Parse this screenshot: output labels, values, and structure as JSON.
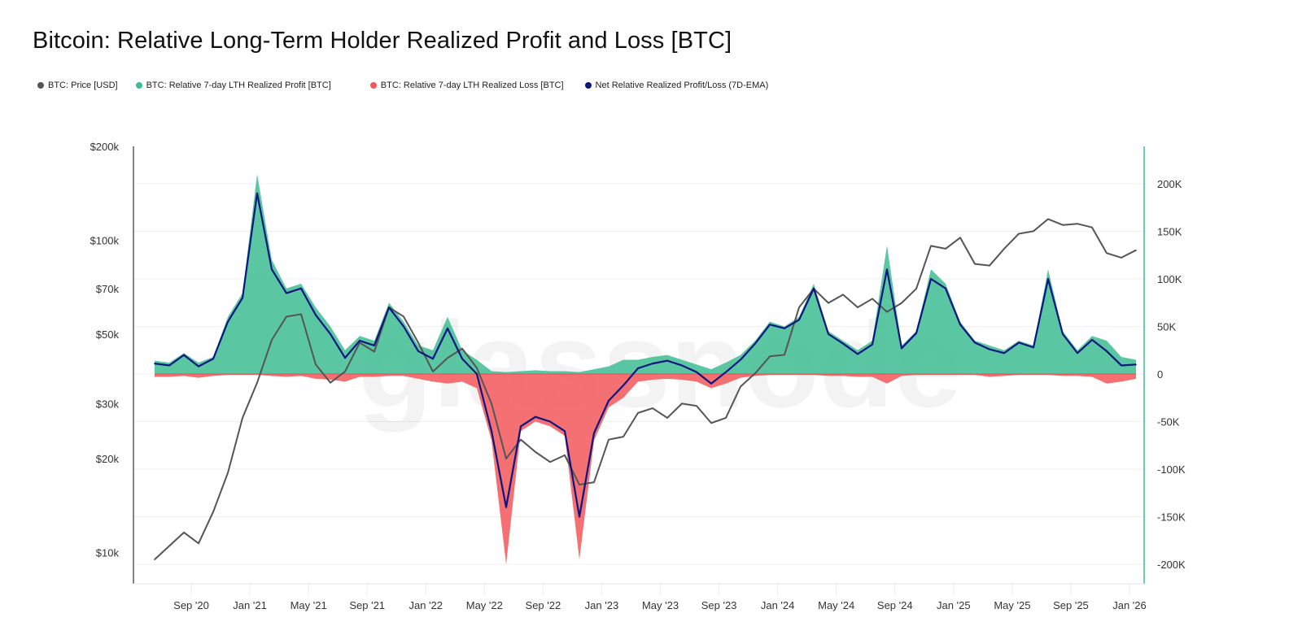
{
  "title": "Bitcoin: Relative Long-Term Holder Realized Profit and Loss [BTC]",
  "watermark": "glassnode",
  "legend": [
    {
      "label": "BTC: Price [USD]",
      "color": "#555555"
    },
    {
      "label": "BTC: Relative 7-day LTH Realized Profit [BTC]",
      "color": "#3dbd92"
    },
    {
      "label": "BTC: Relative 7-day LTH Realized Loss [BTC]",
      "color": "#f2575a"
    },
    {
      "label": "Net Relative Realized Profit/Loss (7D-EMA)",
      "color": "#0b1680"
    }
  ],
  "chart_data": {
    "type": "line",
    "title": "Bitcoin: Relative Long-Term Holder Realized Profit and Loss [BTC]",
    "legend_position": "top-left",
    "grid": true,
    "x_ticks": [
      "Sep '20",
      "Jan '21",
      "May '21",
      "Sep '21",
      "Jan '22",
      "May '22",
      "Sep '22",
      "Jan '23",
      "May '23",
      "Sep '23",
      "Jan '24",
      "May '24",
      "Sep '24",
      "Jan '25",
      "May '25",
      "Sep '25",
      "Jan '26"
    ],
    "left_axis": {
      "scale": "log",
      "range": [
        10000,
        200000
      ],
      "ticks": [
        "$200k",
        "$100k",
        "$70k",
        "$50k",
        "$30k",
        "$20k",
        "$10k"
      ],
      "tick_values": [
        200000,
        100000,
        70000,
        50000,
        30000,
        20000,
        10000
      ]
    },
    "right_axis": {
      "scale": "linear",
      "range": [
        -220000,
        230000
      ],
      "ticks": [
        "200K",
        "150K",
        "100K",
        "50K",
        "0",
        "-50K",
        "-100K",
        "-150K",
        "-200K"
      ],
      "tick_values": [
        200000,
        150000,
        100000,
        50000,
        0,
        -50000,
        -100000,
        -150000,
        -200000
      ]
    },
    "x": [
      "2020-06",
      "2020-07",
      "2020-08",
      "2020-09",
      "2020-10",
      "2020-11",
      "2020-12",
      "2021-01",
      "2021-02",
      "2021-03",
      "2021-04",
      "2021-05",
      "2021-06",
      "2021-07",
      "2021-08",
      "2021-09",
      "2021-10",
      "2021-11",
      "2021-12",
      "2022-01",
      "2022-02",
      "2022-03",
      "2022-04",
      "2022-05",
      "2022-06",
      "2022-07",
      "2022-08",
      "2022-09",
      "2022-10",
      "2022-11",
      "2022-12",
      "2023-01",
      "2023-02",
      "2023-03",
      "2023-04",
      "2023-05",
      "2023-06",
      "2023-07",
      "2023-08",
      "2023-09",
      "2023-10",
      "2023-11",
      "2023-12",
      "2024-01",
      "2024-02",
      "2024-03",
      "2024-04",
      "2024-05",
      "2024-06",
      "2024-07",
      "2024-08",
      "2024-09",
      "2024-10",
      "2024-11",
      "2024-12",
      "2025-01",
      "2025-02",
      "2025-03",
      "2025-04",
      "2025-05",
      "2025-06",
      "2025-07",
      "2025-08",
      "2025-09",
      "2025-10",
      "2025-11",
      "2025-12",
      "2026-01"
    ],
    "series": [
      {
        "name": "BTC: Price [USD]",
        "axis": "left",
        "values": [
          9500,
          10500,
          11600,
          10700,
          13500,
          18000,
          27000,
          35000,
          48000,
          57000,
          58000,
          40000,
          35000,
          38000,
          47000,
          44000,
          61000,
          57000,
          47000,
          38000,
          42000,
          45000,
          39000,
          30000,
          20000,
          23000,
          21000,
          19500,
          20500,
          16500,
          16800,
          23000,
          23500,
          28000,
          29000,
          27000,
          30000,
          29500,
          26000,
          27000,
          34000,
          37500,
          42500,
          43000,
          61000,
          70000,
          63000,
          67000,
          61000,
          65000,
          59000,
          63000,
          70000,
          96000,
          94000,
          102000,
          84000,
          83000,
          94000,
          105000,
          107000,
          117000,
          112000,
          113000,
          110000,
          91000,
          88000,
          93000
        ]
      },
      {
        "name": "BTC: Relative 7-day LTH Realized Profit [BTC]",
        "axis": "right",
        "values": [
          14000,
          12000,
          22000,
          12000,
          18000,
          60000,
          85000,
          210000,
          120000,
          90000,
          95000,
          70000,
          50000,
          25000,
          40000,
          35000,
          75000,
          55000,
          30000,
          25000,
          60000,
          25000,
          15000,
          3000,
          2000,
          3000,
          4000,
          3000,
          3000,
          2000,
          5000,
          8000,
          15000,
          15000,
          18000,
          20000,
          15000,
          10000,
          5000,
          12000,
          20000,
          35000,
          55000,
          50000,
          60000,
          95000,
          45000,
          35000,
          25000,
          35000,
          135000,
          30000,
          45000,
          110000,
          95000,
          55000,
          35000,
          30000,
          25000,
          35000,
          30000,
          110000,
          45000,
          25000,
          40000,
          35000,
          18000,
          15000
        ]
      },
      {
        "name": "BTC: Relative 7-day LTH Realized Loss [BTC]",
        "axis": "right",
        "values": [
          -3000,
          -3000,
          -2000,
          -4000,
          -2000,
          -1000,
          -1000,
          -1000,
          -2000,
          -3000,
          -2000,
          -5000,
          -6000,
          -8000,
          -3000,
          -3000,
          -2000,
          -2000,
          -5000,
          -8000,
          -10000,
          -8000,
          -15000,
          -70000,
          -200000,
          -60000,
          -50000,
          -55000,
          -65000,
          -195000,
          -70000,
          -35000,
          -25000,
          -8000,
          -6000,
          -5000,
          -6000,
          -8000,
          -15000,
          -10000,
          -4000,
          -2000,
          -1000,
          -1000,
          -1000,
          -1000,
          -2000,
          -2000,
          -3000,
          -3000,
          -10000,
          -2000,
          -1000,
          -1000,
          -1000,
          -1000,
          -1000,
          -3000,
          -2000,
          -1000,
          -1000,
          -1000,
          -2000,
          -2000,
          -3000,
          -10000,
          -8000,
          -5000
        ]
      },
      {
        "name": "Net Relative Realized Profit/Loss (7D-EMA)",
        "axis": "right",
        "values": [
          11000,
          9000,
          20000,
          8000,
          16000,
          55000,
          80000,
          190000,
          110000,
          85000,
          90000,
          62000,
          42000,
          17000,
          35000,
          30000,
          70000,
          50000,
          24000,
          16000,
          48000,
          16000,
          0,
          -60000,
          -140000,
          -55000,
          -45000,
          -50000,
          -60000,
          -150000,
          -62000,
          -28000,
          -12000,
          6000,
          11000,
          14000,
          9000,
          2000,
          -10000,
          2000,
          15000,
          32000,
          52000,
          48000,
          57000,
          90000,
          42000,
          32000,
          21000,
          31000,
          110000,
          27000,
          43000,
          100000,
          90000,
          52000,
          33000,
          26000,
          22000,
          33000,
          28000,
          100000,
          42000,
          22000,
          36000,
          24000,
          9000,
          10000
        ]
      }
    ]
  }
}
